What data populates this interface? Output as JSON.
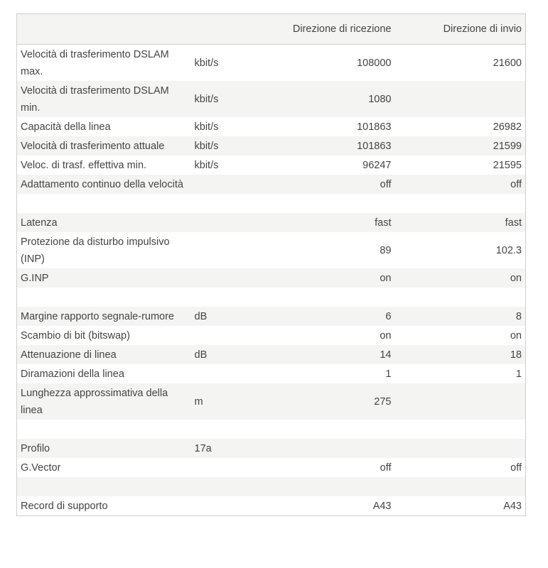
{
  "table": {
    "headers": [
      "",
      "",
      "Direzione di ricezione",
      "Direzione di invio"
    ],
    "rows": [
      {
        "label": "Velocità di trasferimento DSLAM max.",
        "unit": "kbit/s",
        "rx": "108000",
        "tx": "21600"
      },
      {
        "label": "Velocità di trasferimento DSLAM min.",
        "unit": "kbit/s",
        "rx": "1080",
        "tx": ""
      },
      {
        "label": "Capacità della linea",
        "unit": "kbit/s",
        "rx": "101863",
        "tx": "26982"
      },
      {
        "label": "Velocità di trasferimento attuale",
        "unit": "kbit/s",
        "rx": "101863",
        "tx": "21599"
      },
      {
        "label": "Veloc. di trasf. effettiva min.",
        "unit": "kbit/s",
        "rx": "96247",
        "tx": "21595"
      },
      {
        "label": "Adattamento continuo della velocità",
        "unit": "",
        "rx": "off",
        "tx": "off"
      },
      {
        "label": "",
        "unit": "",
        "rx": "",
        "tx": ""
      },
      {
        "label": "Latenza",
        "unit": "",
        "rx": "fast",
        "tx": "fast"
      },
      {
        "label": "Protezione da disturbo impulsivo (INP)",
        "unit": "",
        "rx": "89",
        "tx": "102.3"
      },
      {
        "label": "G.INP",
        "unit": "",
        "rx": "on",
        "tx": "on"
      },
      {
        "label": "",
        "unit": "",
        "rx": "",
        "tx": ""
      },
      {
        "label": "Margine rapporto segnale-rumore",
        "unit": "dB",
        "rx": "6",
        "tx": "8"
      },
      {
        "label": "Scambio di bit (bitswap)",
        "unit": "",
        "rx": "on",
        "tx": "on"
      },
      {
        "label": "Attenuazione di linea",
        "unit": "dB",
        "rx": "14",
        "tx": "18"
      },
      {
        "label": "Diramazioni della linea",
        "unit": "",
        "rx": "1",
        "tx": "1"
      },
      {
        "label": "Lunghezza approssimativa della linea",
        "unit": "m",
        "rx": "275",
        "tx": ""
      },
      {
        "label": "",
        "unit": "",
        "rx": "",
        "tx": ""
      },
      {
        "label": "Profilo",
        "unit": "17a",
        "rx": "",
        "tx": ""
      },
      {
        "label": "G.Vector",
        "unit": "",
        "rx": "off",
        "tx": "off"
      },
      {
        "label": "",
        "unit": "",
        "rx": "",
        "tx": ""
      },
      {
        "label": "Record di supporto",
        "unit": "",
        "rx": "A43",
        "tx": "A43"
      }
    ]
  }
}
